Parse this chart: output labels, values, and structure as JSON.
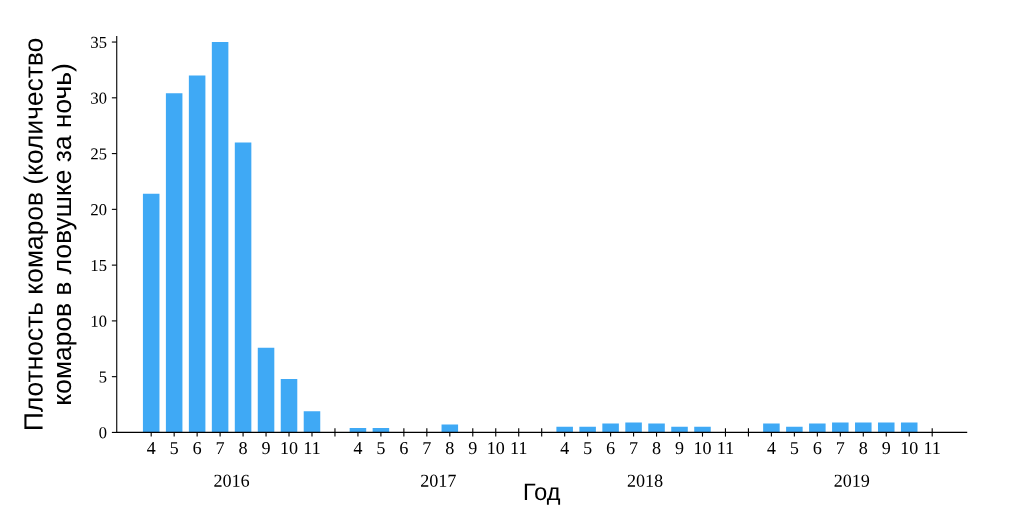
{
  "chart_data": {
    "type": "bar",
    "xlabel": "Год",
    "ylabel": "Плотность комаров (количество\nкомаров в ловушке за ночь)",
    "categories": [
      "4",
      "5",
      "6",
      "7",
      "8",
      "9",
      "10",
      "11",
      null,
      "4",
      "5",
      "6",
      "7",
      "8",
      "9",
      "10",
      "11",
      null,
      "4",
      "5",
      "6",
      "7",
      "8",
      "9",
      "10",
      "11",
      null,
      "4",
      "5",
      "6",
      "7",
      "8",
      "9",
      "10",
      "11"
    ],
    "values": [
      21.4,
      30.4,
      32,
      35,
      26,
      7.6,
      4.8,
      1.9,
      null,
      0.4,
      0.4,
      0,
      0,
      0.7,
      0,
      0,
      0,
      null,
      0.5,
      0.5,
      0.8,
      0.9,
      0.8,
      0.5,
      0.5,
      0,
      null,
      0.8,
      0.5,
      0.8,
      0.9,
      0.9,
      0.9,
      0.9,
      0
    ],
    "color": "#3fa9f5",
    "annotations": [
      "2016",
      "2017",
      "2018",
      "2019"
    ],
    "ylim": [
      0,
      35.5
    ],
    "yticks": [
      0,
      5,
      10,
      15,
      20,
      25,
      30,
      35
    ],
    "grid": false
  }
}
